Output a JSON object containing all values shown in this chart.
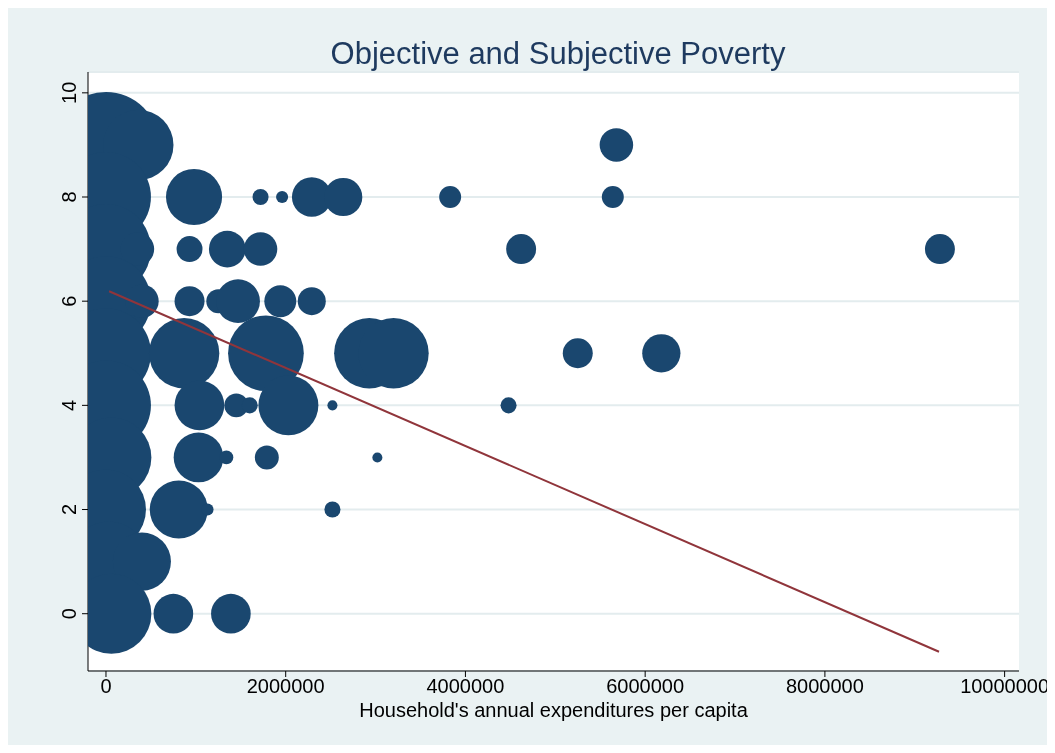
{
  "chart_data": {
    "type": "bubble",
    "title": "Objective and Subjective Poverty",
    "xlabel": "Household's annual expenditures per capita",
    "xlim": [
      -200000,
      10160000
    ],
    "xticks": [
      0,
      2000000,
      4000000,
      6000000,
      8000000,
      10000000
    ],
    "ylim": [
      -1.1,
      10.4
    ],
    "yticks": [
      0,
      2,
      4,
      6,
      8,
      10
    ],
    "grid": "y",
    "series": [
      {
        "type": "bubble",
        "color": "#1a476f",
        "x": [
          0,
          360000,
          5680000,
          0,
          980000,
          1720000,
          1960000,
          2290000,
          2640000,
          3830000,
          5640000,
          0,
          350000,
          930000,
          1350000,
          1720000,
          4620000,
          9280000,
          0,
          400000,
          930000,
          1250000,
          1470000,
          1940000,
          2290000,
          0,
          870000,
          1780000,
          2930000,
          3200000,
          5250000,
          6180000,
          0,
          1040000,
          1450000,
          1600000,
          2030000,
          2520000,
          4480000,
          60000,
          1030000,
          1340000,
          1790000,
          3020000,
          0,
          810000,
          1130000,
          2520000,
          30000,
          400000,
          60000,
          750000,
          1390000
        ],
        "values": [
          9,
          9,
          9,
          8,
          8,
          8,
          8,
          8,
          8,
          8,
          8,
          7,
          7,
          7,
          7,
          7,
          7,
          7,
          6,
          6,
          6,
          6,
          6,
          6,
          6,
          5,
          5,
          5,
          5,
          5,
          5,
          5,
          4,
          4,
          4,
          4,
          4,
          4,
          4,
          3,
          3,
          3,
          3,
          3,
          2,
          2,
          2,
          2,
          1,
          1,
          0,
          0,
          0
        ],
        "sizes": [
          1,
          0.44,
          0.1,
          0.72,
          0.28,
          0.023,
          0.013,
          0.14,
          0.13,
          0.043,
          0.043,
          0.72,
          0.1,
          0.06,
          0.12,
          0.1,
          0.08,
          0.08,
          0.72,
          0.1,
          0.08,
          0.051,
          0.17,
          0.091,
          0.07,
          0.72,
          0.44,
          0.51,
          0.44,
          0.44,
          0.08,
          0.13,
          0.72,
          0.22,
          0.051,
          0.023,
          0.32,
          0.009,
          0.023,
          0.57,
          0.22,
          0.017,
          0.051,
          0.009,
          0.57,
          0.3,
          0.013,
          0.023,
          0.57,
          0.3,
          0.57,
          0.14,
          0.14
        ]
      },
      {
        "type": "line",
        "color": "#90353b",
        "x": [
          35000,
          9270000
        ],
        "values": [
          6.19,
          -0.73
        ]
      }
    ]
  }
}
